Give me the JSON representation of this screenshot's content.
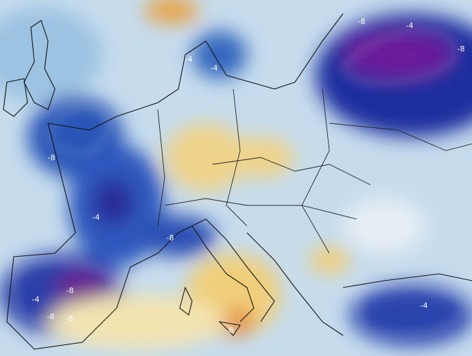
{
  "contour_labels": [
    "-8",
    "-4",
    "-8",
    "-4",
    "-4",
    "-8",
    "-4",
    "-8",
    "-8",
    "-4",
    "-8",
    "-8",
    "-4",
    "-8"
  ]
}
